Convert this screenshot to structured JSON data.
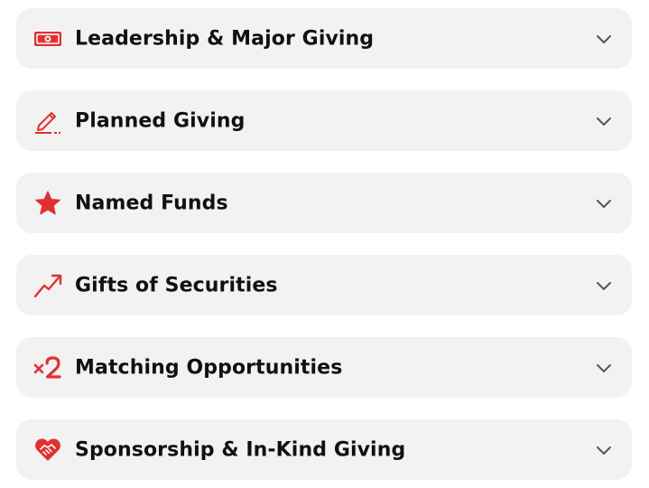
{
  "accent_color": "#e03131",
  "accordion": {
    "items": [
      {
        "label": "Leadership & Major Giving",
        "icon": "money-bill-icon"
      },
      {
        "label": "Planned Giving",
        "icon": "pen-signature-icon"
      },
      {
        "label": "Named Funds",
        "icon": "star-icon"
      },
      {
        "label": "Gifts of Securities",
        "icon": "trend-up-icon"
      },
      {
        "label": "Matching Opportunities",
        "icon": "times-two-icon"
      },
      {
        "label": "Sponsorship & In-Kind Giving",
        "icon": "heart-handshake-icon"
      }
    ]
  }
}
